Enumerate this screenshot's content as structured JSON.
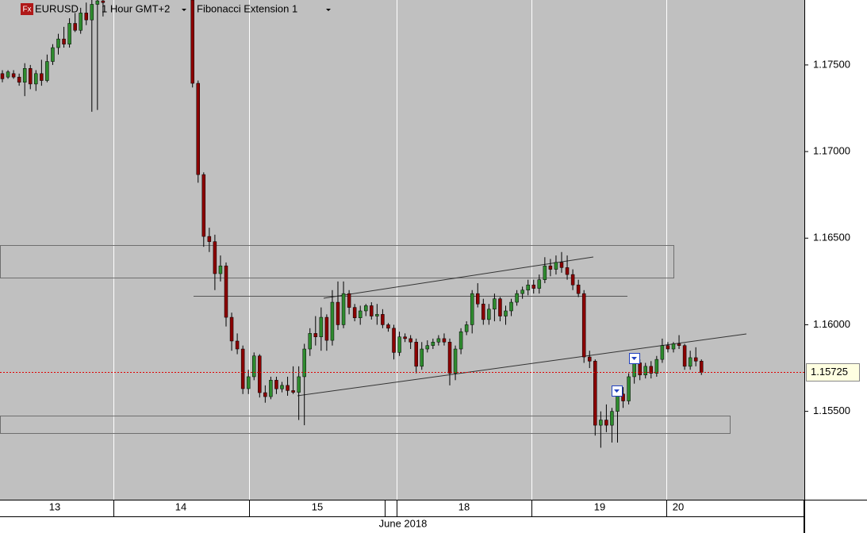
{
  "chart_data": {
    "type": "candlestick",
    "symbol": "EURUSD",
    "timeframe": "1 Hour GMT+2",
    "tool": "Fibonacci Extension 1",
    "icon_label": "Fx",
    "up_color": "#2e8b2e",
    "down_color": "#8b0000",
    "ylim": [
      1.1499,
      1.17875
    ],
    "yticks": [
      {
        "value": 1.155,
        "label": "1.15500"
      },
      {
        "value": 1.16,
        "label": "1.16000"
      },
      {
        "value": 1.165,
        "label": "1.16500"
      },
      {
        "value": 1.17,
        "label": "1.17000"
      },
      {
        "value": 1.175,
        "label": "1.17500"
      }
    ],
    "last_price": 1.15725,
    "day_labels": [
      "13",
      "14",
      "15",
      "18",
      "19",
      "20"
    ],
    "month_label": "June 2018",
    "ohlc": [
      [
        1.1745,
        1.1747,
        1.174,
        1.1742
      ],
      [
        1.1743,
        1.1747,
        1.1742,
        1.1746
      ],
      [
        1.1745,
        1.1747,
        1.1742,
        1.1743
      ],
      [
        1.1743,
        1.1745,
        1.1738,
        1.174
      ],
      [
        1.174,
        1.1751,
        1.1732,
        1.1748
      ],
      [
        1.1748,
        1.175,
        1.1736,
        1.1739
      ],
      [
        1.1739,
        1.1747,
        1.1735,
        1.1745
      ],
      [
        1.1745,
        1.1753,
        1.1738,
        1.1741
      ],
      [
        1.1741,
        1.1756,
        1.174,
        1.1752
      ],
      [
        1.1752,
        1.1762,
        1.175,
        1.176
      ],
      [
        1.176,
        1.1768,
        1.1756,
        1.1765
      ],
      [
        1.1765,
        1.1772,
        1.176,
        1.1762
      ],
      [
        1.1762,
        1.1777,
        1.176,
        1.1774
      ],
      [
        1.1774,
        1.178,
        1.1769,
        1.177
      ],
      [
        1.177,
        1.1783,
        1.1768,
        1.178
      ],
      [
        1.178,
        1.1786,
        1.1773,
        1.1776
      ],
      [
        1.1776,
        1.17875,
        1.1723,
        1.1785
      ],
      [
        1.1785,
        1.17875,
        1.1724,
        1.1787
      ],
      [
        1.1787,
        1.17875,
        1.1778,
        1.1786
      ],
      null,
      null,
      null,
      null,
      null,
      null,
      null,
      null,
      null,
      null,
      null,
      null,
      null,
      null,
      null,
      [
        1.17875,
        1.17875,
        1.1737,
        1.17394
      ],
      [
        1.17394,
        1.1741,
        1.1682,
        1.16867
      ],
      [
        1.16867,
        1.1688,
        1.1645,
        1.1651
      ],
      [
        1.1651,
        1.1656,
        1.1642,
        1.1648
      ],
      [
        1.1648,
        1.1652,
        1.162,
        1.16295
      ],
      [
        1.16295,
        1.164,
        1.1625,
        1.1634
      ],
      [
        1.1634,
        1.1636,
        1.1599,
        1.16043
      ],
      [
        1.16043,
        1.1607,
        1.1585,
        1.15906
      ],
      [
        1.15906,
        1.1595,
        1.1583,
        1.1586
      ],
      [
        1.1586,
        1.1588,
        1.156,
        1.15631
      ],
      [
        1.15631,
        1.1574,
        1.156,
        1.157
      ],
      [
        1.157,
        1.1584,
        1.1568,
        1.1582
      ],
      [
        1.1582,
        1.1583,
        1.1558,
        1.15608
      ],
      [
        1.15608,
        1.1565,
        1.1555,
        1.15585
      ],
      [
        1.15585,
        1.157,
        1.1557,
        1.1568
      ],
      [
        1.1568,
        1.157,
        1.156,
        1.1563
      ],
      [
        1.1563,
        1.1567,
        1.1561,
        1.1565
      ],
      [
        1.1565,
        1.157,
        1.1559,
        1.1562
      ],
      [
        1.1562,
        1.1576,
        1.156,
        1.1561
      ],
      [
        1.1561,
        1.1576,
        1.1545,
        1.157
      ],
      [
        1.157,
        1.1589,
        1.1542,
        1.1586
      ],
      [
        1.1586,
        1.1598,
        1.1582,
        1.1595
      ],
      [
        1.1595,
        1.1605,
        1.1588,
        1.1593
      ],
      [
        1.1593,
        1.161,
        1.1585,
        1.16043
      ],
      [
        1.16043,
        1.1606,
        1.1585,
        1.1591
      ],
      [
        1.1591,
        1.162,
        1.1588,
        1.1613
      ],
      [
        1.1613,
        1.1625,
        1.1597,
        1.16
      ],
      [
        1.16,
        1.1625,
        1.1598,
        1.1618
      ],
      [
        1.1618,
        1.162,
        1.1606,
        1.161
      ],
      [
        1.161,
        1.1612,
        1.1602,
        1.1604
      ],
      [
        1.1604,
        1.1611,
        1.16,
        1.1608
      ],
      [
        1.1608,
        1.1612,
        1.1605,
        1.1611
      ],
      [
        1.1611,
        1.1613,
        1.1603,
        1.1605
      ],
      [
        1.1605,
        1.1612,
        1.16,
        1.1606
      ],
      [
        1.1606,
        1.1609,
        1.1598,
        1.16
      ],
      [
        1.16,
        1.1601,
        1.1596,
        1.1598
      ],
      [
        1.1598,
        1.16,
        1.158,
        1.1584
      ],
      [
        1.1584,
        1.1596,
        1.1582,
        1.1593
      ],
      [
        1.1593,
        1.1595,
        1.159,
        1.1592
      ],
      [
        1.1592,
        1.1594,
        1.1586,
        1.159
      ],
      [
        1.159,
        1.1592,
        1.1572,
        1.1576
      ],
      [
        1.1576,
        1.159,
        1.1574,
        1.1586
      ],
      [
        1.1586,
        1.1591,
        1.1584,
        1.1588
      ],
      [
        1.1588,
        1.1592,
        1.1586,
        1.159
      ],
      [
        1.159,
        1.1594,
        1.1588,
        1.1592
      ],
      [
        1.1592,
        1.1595,
        1.1588,
        1.159
      ],
      [
        1.159,
        1.1592,
        1.1565,
        1.1572
      ],
      [
        1.1572,
        1.1588,
        1.1568,
        1.1586
      ],
      [
        1.1586,
        1.1598,
        1.1583,
        1.1596
      ],
      [
        1.1596,
        1.1602,
        1.1594,
        1.16
      ],
      [
        1.16,
        1.162,
        1.1595,
        1.1618
      ],
      [
        1.1618,
        1.1624,
        1.161,
        1.1612
      ],
      [
        1.1612,
        1.1615,
        1.16,
        1.1603
      ],
      [
        1.1603,
        1.1612,
        1.16,
        1.1609
      ],
      [
        1.1609,
        1.1618,
        1.1602,
        1.1615
      ],
      [
        1.1615,
        1.1616,
        1.1602,
        1.1605
      ],
      [
        1.1605,
        1.1611,
        1.16,
        1.1608
      ],
      [
        1.1608,
        1.1615,
        1.1605,
        1.1613
      ],
      [
        1.1613,
        1.162,
        1.1611,
        1.1618
      ],
      [
        1.1618,
        1.1622,
        1.1615,
        1.162
      ],
      [
        1.162,
        1.1626,
        1.1617,
        1.1623
      ],
      [
        1.1623,
        1.1626,
        1.1618,
        1.1621
      ],
      [
        1.1621,
        1.1629,
        1.1618,
        1.1626
      ],
      [
        1.1626,
        1.1639,
        1.1624,
        1.1634
      ],
      [
        1.1634,
        1.1638,
        1.1628,
        1.1632
      ],
      [
        1.1632,
        1.164,
        1.1629,
        1.1636
      ],
      [
        1.1636,
        1.1642,
        1.163,
        1.1633
      ],
      [
        1.1633,
        1.164,
        1.1626,
        1.1629
      ],
      [
        1.1629,
        1.1632,
        1.162,
        1.1623
      ],
      [
        1.1623,
        1.1626,
        1.1616,
        1.1618
      ],
      [
        1.1618,
        1.162,
        1.1578,
        1.15814
      ],
      [
        1.15814,
        1.1585,
        1.1575,
        1.1579
      ],
      [
        1.1579,
        1.158,
        1.1536,
        1.1542
      ],
      [
        1.1542,
        1.155,
        1.1529,
        1.1545
      ],
      [
        1.1545,
        1.1554,
        1.1538,
        1.1542
      ],
      [
        1.1542,
        1.1552,
        1.1532,
        1.155
      ],
      [
        1.155,
        1.1564,
        1.1532,
        1.156
      ],
      [
        1.156,
        1.1564,
        1.1552,
        1.1556
      ],
      [
        1.1556,
        1.1572,
        1.1554,
        1.157
      ],
      [
        1.157,
        1.158,
        1.1566,
        1.1578
      ],
      [
        1.1578,
        1.158,
        1.1568,
        1.1571
      ],
      [
        1.1571,
        1.1578,
        1.1569,
        1.1576
      ],
      [
        1.1576,
        1.1579,
        1.1569,
        1.1572
      ],
      [
        1.1572,
        1.1582,
        1.157,
        1.158
      ],
      [
        1.158,
        1.1592,
        1.1578,
        1.1588
      ],
      [
        1.1588,
        1.159,
        1.1584,
        1.1586
      ],
      [
        1.1586,
        1.159,
        1.1584,
        1.1589
      ],
      [
        1.1589,
        1.1594,
        1.1586,
        1.1588
      ],
      [
        1.1588,
        1.1589,
        1.1574,
        1.1576
      ],
      [
        1.1576,
        1.1585,
        1.1574,
        1.1581
      ],
      [
        1.1581,
        1.1587,
        1.1576,
        1.1579
      ],
      [
        1.1579,
        1.158,
        1.1571,
        1.15725
      ]
    ]
  }
}
